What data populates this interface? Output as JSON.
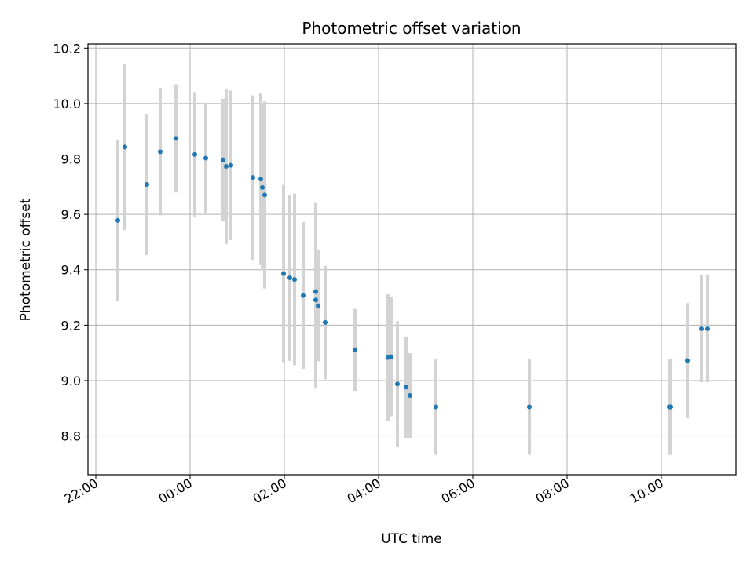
{
  "chart_data": {
    "type": "scatter",
    "title": "Photometric offset variation",
    "xlabel": "UTC time",
    "ylabel": "Photometric offset",
    "x_unit": "hours (UTC, 24 = midnight)",
    "xlim": [
      "21:50",
      "11:35"
    ],
    "ylim": [
      8.66,
      10.215
    ],
    "x_ticks": [
      "22:00",
      "00:00",
      "02:00",
      "04:00",
      "06:00",
      "08:00",
      "10:00"
    ],
    "y_ticks": [
      "8.8",
      "9.0",
      "9.2",
      "9.4",
      "9.6",
      "9.8",
      "10.0",
      "10.2"
    ],
    "grid": true,
    "colors": {
      "point": "#1f77b4",
      "errorbar": "#d3d3d3",
      "grid": "#b0b0b0"
    },
    "series": [
      {
        "points": [
          {
            "t": "22:28",
            "y": 9.578,
            "err": 0.29
          },
          {
            "t": "22:37",
            "y": 9.843,
            "err": 0.3
          },
          {
            "t": "23:05",
            "y": 9.708,
            "err": 0.255
          },
          {
            "t": "23:22",
            "y": 9.826,
            "err": 0.23
          },
          {
            "t": "23:42",
            "y": 9.874,
            "err": 0.195
          },
          {
            "t": "00:06",
            "y": 9.816,
            "err": 0.225
          },
          {
            "t": "00:20",
            "y": 9.803,
            "err": 0.2
          },
          {
            "t": "00:42",
            "y": 9.797,
            "err": 0.22
          },
          {
            "t": "00:46",
            "y": 9.773,
            "err": 0.28
          },
          {
            "t": "00:52",
            "y": 9.777,
            "err": 0.27
          },
          {
            "t": "01:20",
            "y": 9.733,
            "err": 0.297
          },
          {
            "t": "01:30",
            "y": 9.727,
            "err": 0.31
          },
          {
            "t": "01:32",
            "y": 9.697,
            "err": 0.3
          },
          {
            "t": "01:35",
            "y": 9.67,
            "err": 0.338
          },
          {
            "t": "01:59",
            "y": 9.386,
            "err": 0.32
          },
          {
            "t": "02:07",
            "y": 9.371,
            "err": 0.3
          },
          {
            "t": "02:13",
            "y": 9.365,
            "err": 0.31
          },
          {
            "t": "02:24",
            "y": 9.307,
            "err": 0.265
          },
          {
            "t": "02:40",
            "y": 9.321,
            "err": 0.32
          },
          {
            "t": "02:40",
            "y": 9.291,
            "err": 0.32
          },
          {
            "t": "02:43",
            "y": 9.27,
            "err": 0.2
          },
          {
            "t": "02:52",
            "y": 9.21,
            "err": 0.205
          },
          {
            "t": "03:30",
            "y": 9.111,
            "err": 0.148
          },
          {
            "t": "04:12",
            "y": 9.083,
            "err": 0.228
          },
          {
            "t": "04:16",
            "y": 9.086,
            "err": 0.215
          },
          {
            "t": "04:24",
            "y": 8.988,
            "err": 0.226
          },
          {
            "t": "04:35",
            "y": 8.976,
            "err": 0.183
          },
          {
            "t": "04:40",
            "y": 8.946,
            "err": 0.153
          },
          {
            "t": "05:13",
            "y": 8.905,
            "err": 0.173
          },
          {
            "t": "07:12",
            "y": 8.905,
            "err": 0.173
          },
          {
            "t": "10:10",
            "y": 8.905,
            "err": 0.173
          },
          {
            "t": "10:12",
            "y": 8.905,
            "err": 0.173
          },
          {
            "t": "10:33",
            "y": 9.072,
            "err": 0.208
          },
          {
            "t": "10:51",
            "y": 9.187,
            "err": 0.193
          },
          {
            "t": "10:59",
            "y": 9.187,
            "err": 0.193
          }
        ]
      }
    ]
  }
}
